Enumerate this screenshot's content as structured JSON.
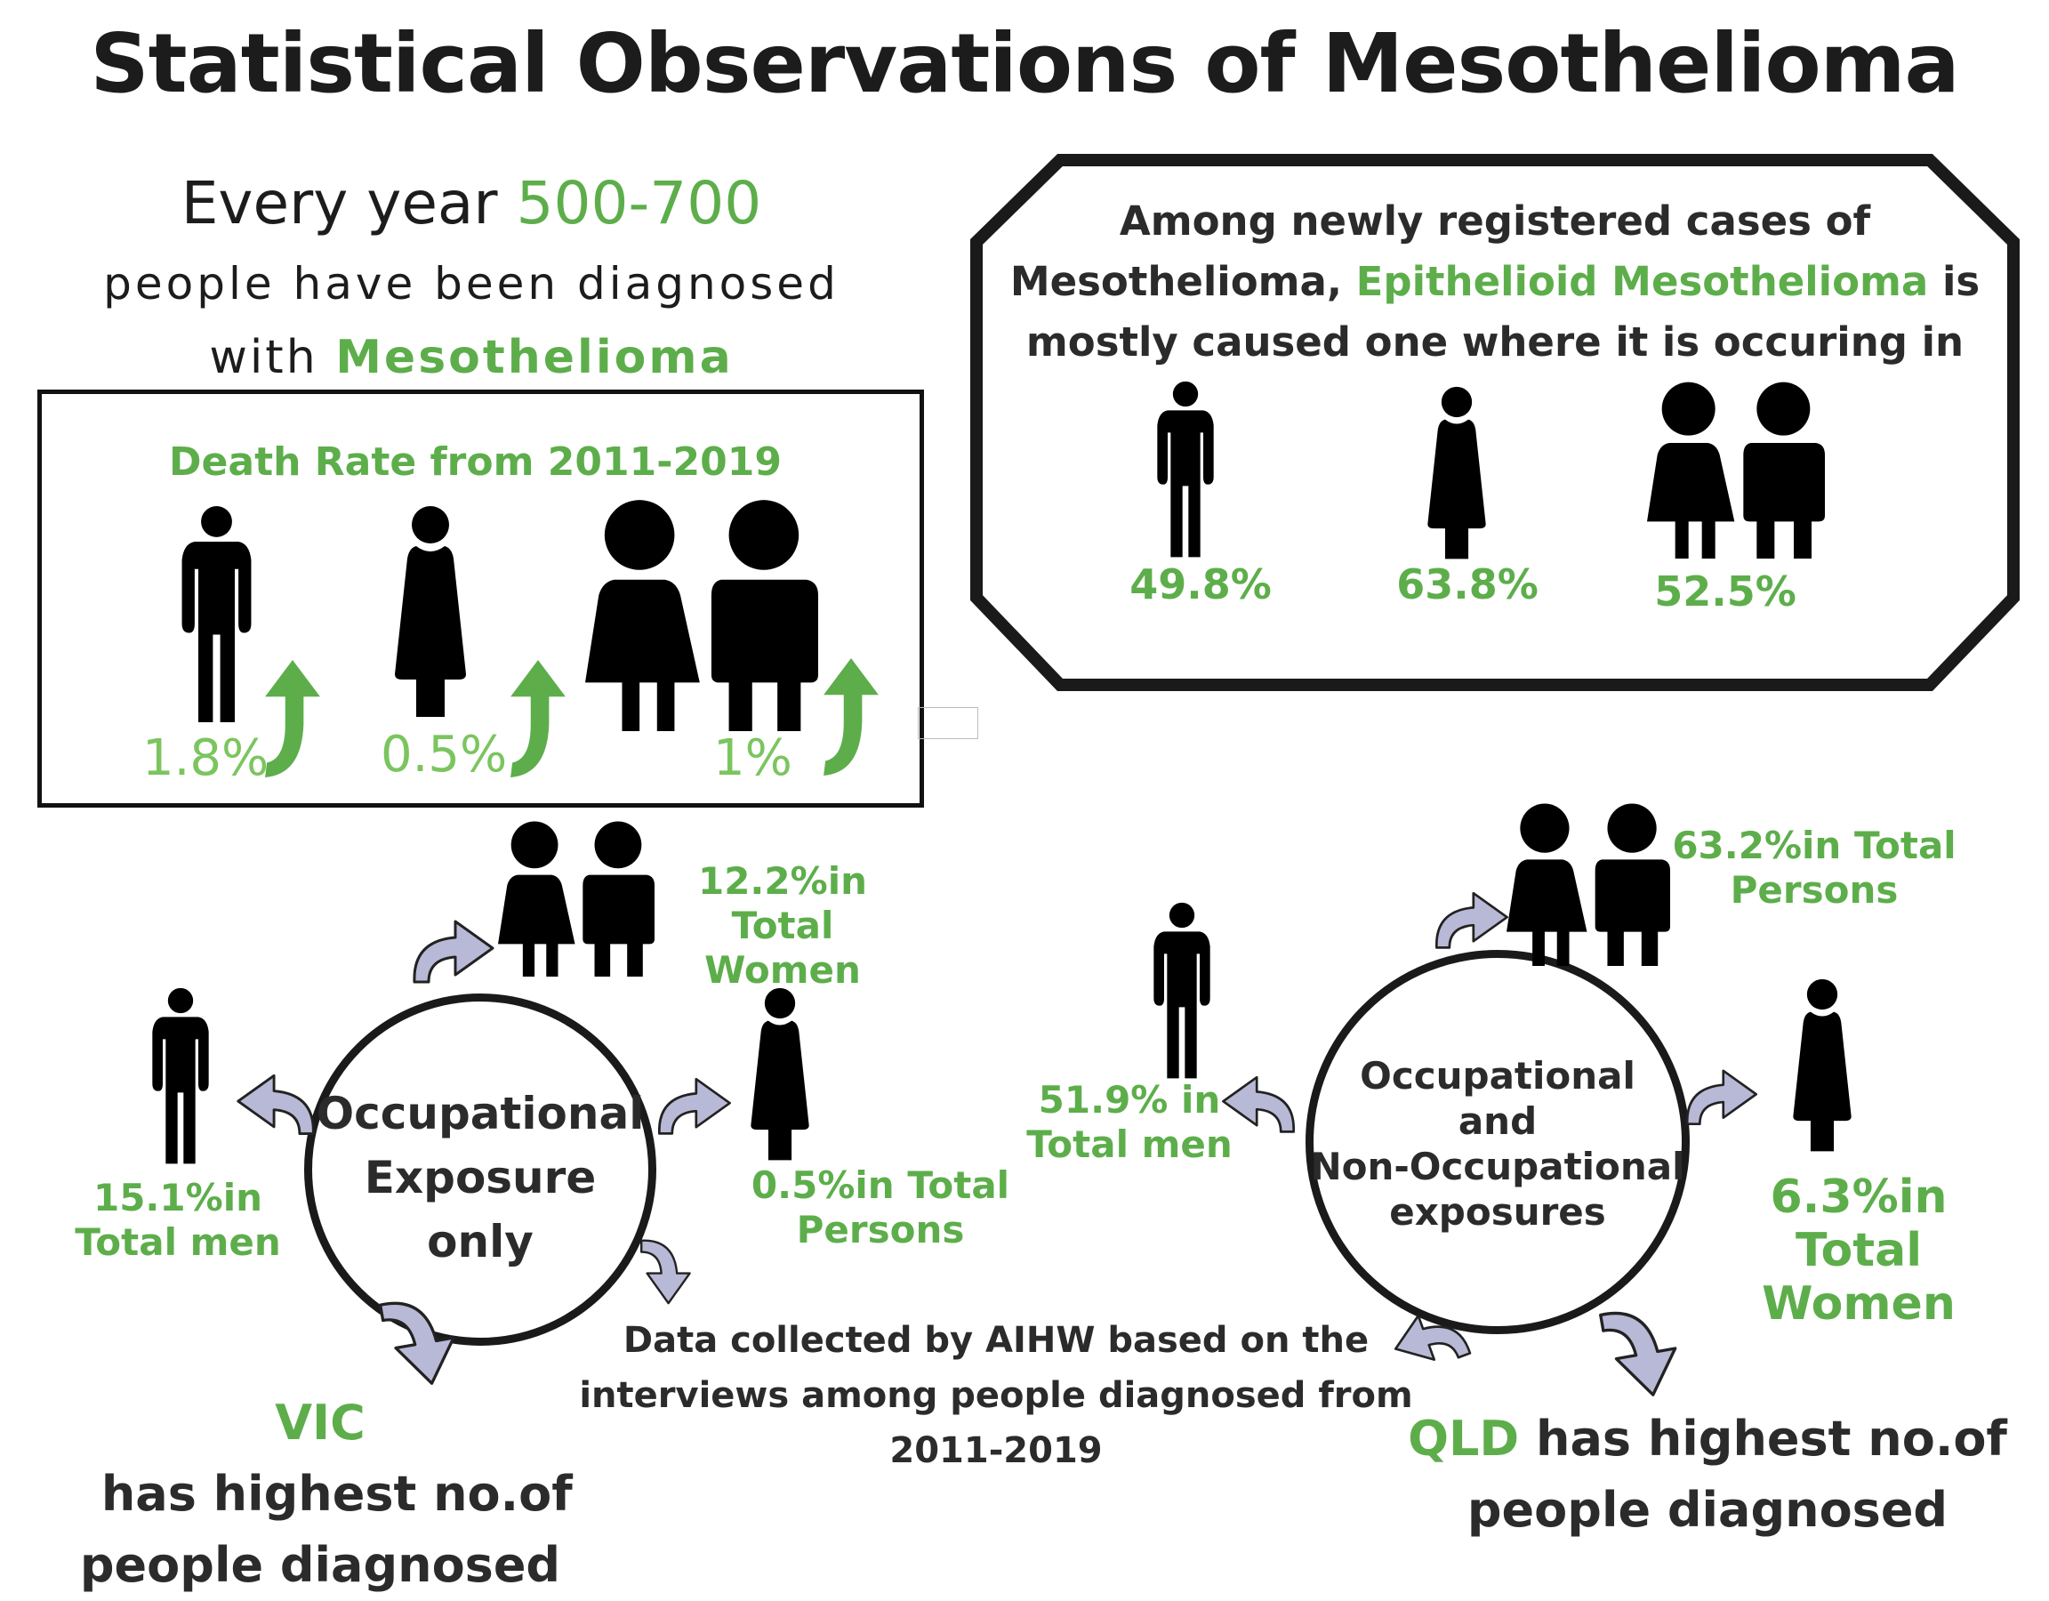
{
  "title": "Statistical Observations of Mesothelioma",
  "yearly": {
    "prefix": "Every year ",
    "range": "500-700",
    "line2": "people have been diagnosed",
    "line3_prefix": "with ",
    "line3_highlight": "Mesothelioma"
  },
  "death_rate": {
    "heading": "Death Rate from 2011-2019",
    "men_value": "1.8%",
    "women_value": "0.5%",
    "persons_value": "1%"
  },
  "epithelioid": {
    "line1": "Among newly registered cases of",
    "line2_prefix": "Mesothelioma, ",
    "line2_highlight": "Epithelioid Mesothelioma",
    "line2_suffix": " is",
    "line3": "mostly caused one where it is occuring in",
    "men_value": "49.8%",
    "women_value": "63.8%",
    "persons_value": "52.5%"
  },
  "occupational": {
    "circle_line1": "Occupational",
    "circle_line2": "Exposure",
    "circle_line3": "only",
    "women_line1": "12.2%in Total",
    "women_line2": "Women",
    "men_line1": "15.1%in",
    "men_line2": "Total men",
    "persons_line1": "0.5%in Total",
    "persons_line2": "Persons",
    "state": "VIC",
    "state_suffix": "  has highest no.of",
    "state_line2": "people diagnosed"
  },
  "mixed": {
    "circle_line1": "Occupational",
    "circle_line2": "and",
    "circle_line3": "Non-Occupational",
    "circle_line4": "exposures",
    "persons_line1": "63.2%in Total",
    "persons_line2": "Persons",
    "men_line1": "51.9% in",
    "men_line2": "Total men",
    "women_line1": "6.3%in Total",
    "women_line2": "Women",
    "state": "QLD",
    "state_suffix": " has highest no.of",
    "state_line2": "people diagnosed"
  },
  "source": {
    "line1": "Data collected by AIHW  based on the",
    "line2": "interviews among people diagnosed from",
    "line3": "2011-2019"
  },
  "colors": {
    "green": "#5dae4b",
    "light_green": "#7bc55f",
    "arrow_fill": "#b8b9d6",
    "ink": "#0b0b0b"
  }
}
